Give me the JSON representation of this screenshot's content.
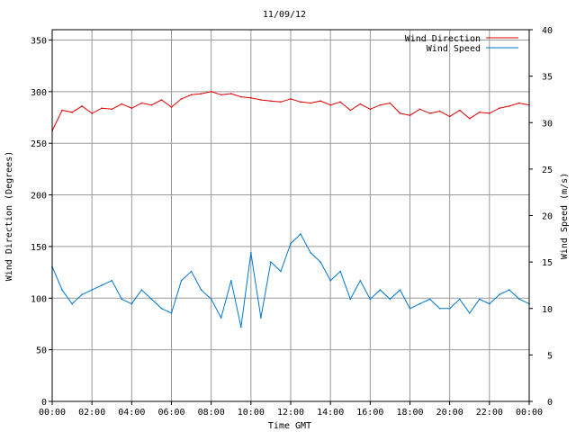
{
  "chart_data": {
    "type": "line",
    "title": "11/09/12",
    "xlabel": "Time GMT",
    "ylabel_left": "Wind Direction (Degrees)",
    "ylabel_right": "Wind Speed (m/s)",
    "x_ticks": [
      "00:00",
      "02:00",
      "04:00",
      "06:00",
      "08:00",
      "10:00",
      "12:00",
      "14:00",
      "16:00",
      "18:00",
      "20:00",
      "22:00",
      "00:00"
    ],
    "xlim_hours": [
      0,
      24
    ],
    "ylim_left": [
      0,
      360
    ],
    "yticks_left": [
      0,
      50,
      100,
      150,
      200,
      250,
      300,
      350
    ],
    "ylim_right": [
      0,
      40
    ],
    "yticks_right": [
      0,
      5,
      10,
      15,
      20,
      25,
      30,
      35,
      40
    ],
    "grid": true,
    "legend_position": "top-right",
    "series": [
      {
        "name": "Wind Direction",
        "axis": "left",
        "color": "#dd0000",
        "x_hours": [
          0,
          0.5,
          1,
          1.5,
          2,
          2.5,
          3,
          3.5,
          4,
          4.5,
          5,
          5.5,
          6,
          6.5,
          7,
          7.5,
          8,
          8.5,
          9,
          9.5,
          10,
          10.5,
          11,
          11.5,
          12,
          12.5,
          13,
          13.5,
          14,
          14.5,
          15,
          15.5,
          16,
          16.5,
          17,
          17.5,
          18,
          18.5,
          19,
          19.5,
          20,
          20.5,
          21,
          21.5,
          22,
          22.5,
          23,
          23.5,
          24
        ],
        "values": [
          262,
          282,
          280,
          286,
          279,
          284,
          283,
          288,
          284,
          289,
          287,
          292,
          285,
          293,
          297,
          298,
          300,
          297,
          298,
          295,
          294,
          292,
          291,
          290,
          293,
          290,
          289,
          291,
          287,
          290,
          282,
          288,
          283,
          287,
          289,
          279,
          277,
          283,
          279,
          281,
          276,
          282,
          274,
          280,
          279,
          284,
          286,
          289,
          287
        ]
      },
      {
        "name": "Wind Speed",
        "axis": "right",
        "color": "#0077cc",
        "x_hours": [
          0,
          0.5,
          1,
          1.5,
          2,
          2.5,
          3,
          3.5,
          4,
          4.5,
          5,
          5.5,
          6,
          6.5,
          7,
          7.5,
          8,
          8.5,
          9,
          9.5,
          10,
          10.5,
          11,
          11.5,
          12,
          12.5,
          13,
          13.5,
          14,
          14.5,
          15,
          15.5,
          16,
          16.5,
          17,
          17.5,
          18,
          18.5,
          19,
          19.5,
          20,
          20.5,
          21,
          21.5,
          22,
          22.5,
          23,
          23.5,
          24
        ],
        "values": [
          14.5,
          12,
          10.5,
          11.5,
          12,
          12.5,
          13,
          11,
          10.5,
          12,
          11,
          10,
          9.5,
          13,
          14,
          12,
          11,
          9,
          13,
          8,
          16,
          9,
          15,
          14,
          17,
          18,
          16,
          15,
          13,
          14,
          11,
          13,
          11,
          12,
          11,
          12,
          10,
          10.5,
          11,
          10,
          10,
          11,
          9.5,
          11,
          10.5,
          11.5,
          12,
          11,
          10.5
        ]
      }
    ]
  }
}
